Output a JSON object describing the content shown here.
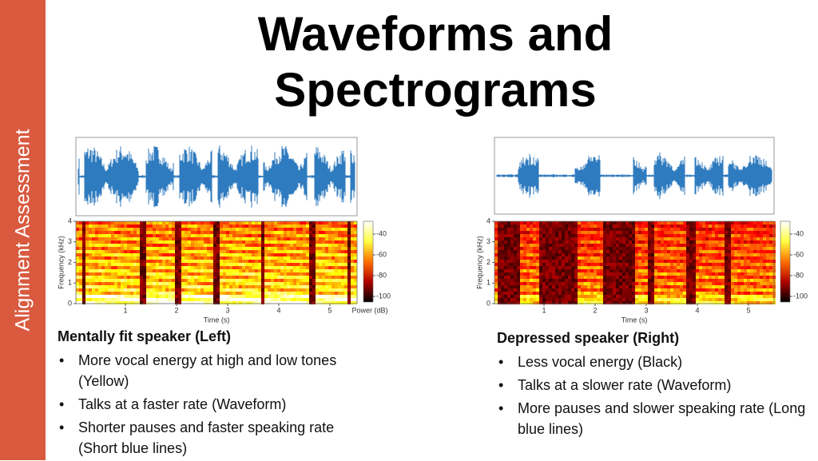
{
  "sidebar": "Alignment Assessment",
  "title": "Waveforms and Spectrograms",
  "figures": [
    {
      "heading": "Mentally fit speaker (Left)",
      "bullets": [
        "More vocal energy at high and low tones (Yellow)",
        "Talks at a faster rate (Waveform)",
        "Shorter pauses and faster speaking rate (Short blue lines)"
      ],
      "spectrogram": {
        "y_label": "Frequency (kHz)",
        "x_label": "Time (s)",
        "yticks": [
          0,
          1,
          2,
          3,
          4
        ],
        "xticks": [
          1,
          2,
          3,
          4,
          5
        ],
        "colorbar_ticks": [
          -40,
          -60,
          -80,
          -100
        ],
        "colorbar_label": "Power (dB)"
      }
    },
    {
      "heading": "Depressed speaker (Right)",
      "bullets": [
        "Less vocal energy (Black)",
        "Talks at a slower rate (Waveform)",
        "More pauses and slower speaking rate (Long blue lines)"
      ],
      "spectrogram": {
        "y_label": "Frequency (kHz)",
        "x_label": "Time (s)",
        "yticks": [
          0,
          1,
          2,
          3,
          4
        ],
        "xticks": [
          1,
          2,
          3,
          4,
          5
        ],
        "colorbar_ticks": [
          -40,
          -60,
          -80,
          -100
        ]
      }
    }
  ]
}
